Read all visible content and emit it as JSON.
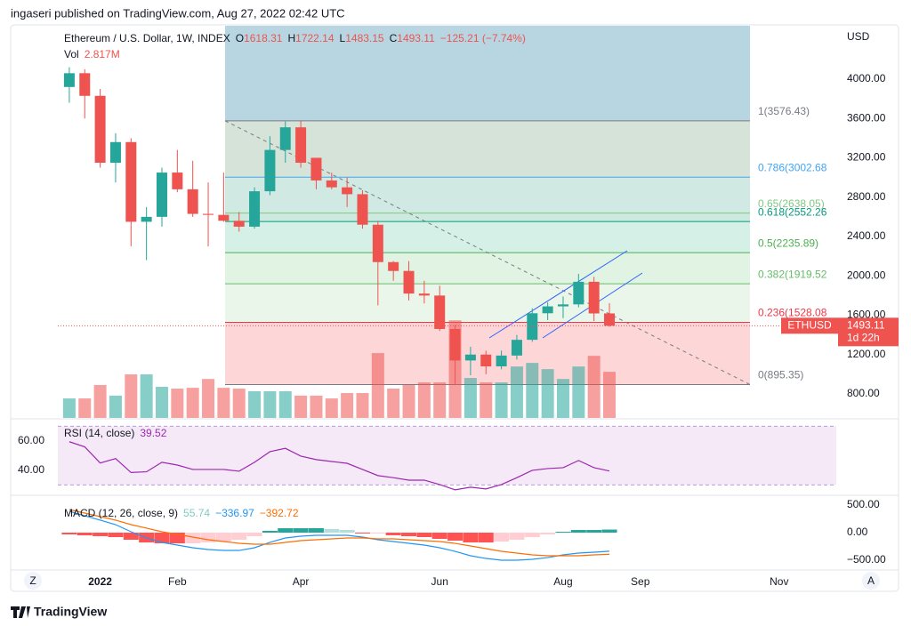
{
  "header": "ingaseri published on TradingView.com, Aug 27, 2022 02:42 UTC",
  "footer": "TradingView",
  "buttons": [
    "Z",
    "A"
  ],
  "chart_data": {
    "type": "candlestick",
    "title": "Ethereum / U.S. Dollar, 1W, INDEX",
    "ohlc_labels": [
      "O",
      "H",
      "L",
      "C"
    ],
    "change": "−125.21 (−7.74%)",
    "y_unit": "USD",
    "symbol": "ETHUSD",
    "countdown": "1d 22h",
    "up_color": "#26a69a",
    "down_color": "#ef5350",
    "open": [
      3920,
      4060,
      3830,
      3150,
      3360,
      2550,
      2600,
      3050,
      2880,
      2630,
      2620,
      2560,
      2500,
      2860,
      3280,
      3510,
      3200,
      2970,
      2900,
      2830,
      2520,
      2140,
      2050,
      1820,
      1800,
      1460,
      1140,
      1200,
      1080,
      1190,
      1350,
      1620,
      1690,
      1710,
      1940,
      1618.31
    ],
    "high": [
      4120,
      4100,
      3900,
      3450,
      3400,
      2700,
      3100,
      3280,
      3170,
      2950,
      3050,
      2650,
      2900,
      3420,
      3570,
      3580,
      3200,
      3050,
      3000,
      2870,
      2560,
      2150,
      2150,
      1950,
      1900,
      1500,
      1280,
      1240,
      1240,
      1400,
      1670,
      1730,
      1790,
      2020,
      1990,
      1722.14
    ],
    "low": [
      3760,
      3600,
      3100,
      2950,
      2300,
      2160,
      2500,
      2850,
      2600,
      2300,
      2550,
      2450,
      2480,
      2820,
      3150,
      3100,
      2880,
      2880,
      2700,
      2480,
      1700,
      1950,
      1750,
      1720,
      1440,
      890,
      990,
      1000,
      1050,
      1150,
      1330,
      1550,
      1570,
      1680,
      1540,
      1483.15
    ],
    "close": [
      4060,
      3830,
      3150,
      3360,
      2550,
      2600,
      3050,
      2880,
      2630,
      2620,
      2560,
      2500,
      2860,
      3280,
      3510,
      3150,
      2970,
      2900,
      2830,
      2520,
      2140,
      2050,
      1820,
      1800,
      1460,
      1140,
      1200,
      1080,
      1190,
      1350,
      1620,
      1690,
      1710,
      1940,
      1618,
      1493.11
    ],
    "xlim": [
      -3.8,
      49.7
    ],
    "xticks": [
      {
        "value": 2,
        "label": "2022"
      },
      {
        "value": 7,
        "label": "Feb"
      },
      {
        "value": 15,
        "label": "Apr"
      },
      {
        "value": 24,
        "label": "Jun"
      },
      {
        "value": 32,
        "label": "Aug"
      },
      {
        "value": 37,
        "label": "Sep"
      },
      {
        "value": 46,
        "label": "Nov"
      }
    ],
    "ylim": [
      556,
      4551
    ],
    "yticks": [
      {
        "value": 800,
        "label": "800.00"
      },
      {
        "value": 1200,
        "label": "1200.00"
      },
      {
        "value": 1600,
        "label": "1600.00"
      },
      {
        "value": 2000,
        "label": "2000.00"
      },
      {
        "value": 2400,
        "label": "2400.00"
      },
      {
        "value": 2800,
        "label": "2800.00"
      },
      {
        "value": 3200,
        "label": "3200.00"
      },
      {
        "value": 3600,
        "label": "3600.00"
      },
      {
        "value": 4000,
        "label": "4000.00"
      }
    ],
    "price_tag": "1493.11",
    "fib": {
      "values": [
        3576.43,
        3002.68,
        2638.05,
        2552.26,
        2235.89,
        1919.52,
        1528.08,
        895.35
      ],
      "labels": [
        "1(3576.43)",
        "0.786(3002.68",
        "0.65(2638.05)",
        "0.618(2552.26",
        "0.5(2235.89)",
        "0.382(1919.52",
        "0.236(1528.08",
        "0(895.35)"
      ],
      "colors": [
        "#787b86",
        "#42a5f5",
        "#81c784",
        "#089981",
        "#4caf50",
        "#66bb6a",
        "#f23645",
        "#787b86"
      ],
      "zone_colors": [
        "#b7d6e2",
        "#d3e2d6",
        "#cde9e1",
        "#c9e9dc",
        "#d2efe6",
        "#dff3e3",
        "#eaf6ea",
        "#fdd5d6"
      ]
    },
    "volume": {
      "label": "Vol",
      "value_label": "2.817M",
      "ylim": [
        0,
        24
      ],
      "values": [
        1.19,
        1.19,
        2.01,
        1.36,
        2.66,
        2.66,
        1.9,
        1.79,
        1.84,
        2.38,
        1.84,
        1.79,
        1.63,
        1.63,
        1.63,
        1.36,
        1.36,
        1.19,
        1.52,
        1.52,
        3.96,
        1.79,
        2.01,
        2.17,
        2.17,
        5.96,
        2.44,
        2.17,
        2.17,
        3.14,
        3.36,
        2.98,
        2.38,
        3.14,
        3.79,
        2.817
      ]
    },
    "rsi": {
      "label": "RSI (14, close)",
      "color": "#9c27b0",
      "band": [
        30,
        70
      ],
      "ylim": [
        24.2,
        74.5
      ],
      "yticks": [
        {
          "value": 60,
          "label": "60.00"
        },
        {
          "value": 40,
          "label": "40.00"
        }
      ],
      "values": [
        59.5,
        56,
        45,
        48,
        38.5,
        39,
        45.5,
        43.6,
        40.6,
        40.6,
        40.6,
        39.4,
        45.5,
        52.7,
        55,
        49.7,
        47.3,
        46,
        44.8,
        40.6,
        36.4,
        35,
        33.3,
        33.3,
        30.3,
        26.7,
        28.5,
        27.3,
        30.3,
        35,
        40,
        41.2,
        41.8,
        46.7,
        41.8,
        39.52
      ]
    },
    "macd": {
      "label": "MACD (12, 26, close, 9)",
      "legend_labels": [
        "55.74",
        "−336.97",
        "−392.72"
      ],
      "colors": [
        "#26a69a",
        "#2196f3",
        "#ff6d00"
      ],
      "ylim": [
        -661,
        661
      ],
      "yticks": [
        {
          "value": 500,
          "label": "500.00"
        },
        {
          "value": 0,
          "label": "0.00"
        },
        {
          "value": -500,
          "label": "−500.00"
        }
      ],
      "histogram": [
        -32,
        -49,
        -64,
        -81,
        -129,
        -178,
        -193,
        -194,
        -193,
        -177,
        -162,
        -129,
        -64,
        33,
        80,
        80,
        81,
        65,
        49,
        -16,
        -16,
        -48,
        -65,
        -81,
        -113,
        -145,
        -177,
        -178,
        -161,
        -129,
        -81,
        -33,
        16,
        48,
        48,
        55.74
      ],
      "macd": [
        387,
        306,
        226,
        145,
        16,
        -97,
        -177,
        -226,
        -274,
        -306,
        -323,
        -323,
        -274,
        -177,
        -97,
        -65,
        -48,
        -48,
        -48,
        -81,
        -129,
        -161,
        -194,
        -226,
        -274,
        -339,
        -419,
        -468,
        -500,
        -500,
        -484,
        -452,
        -403,
        -371,
        -355,
        -336.97
      ],
      "signal": [
        419,
        355,
        290,
        226,
        145,
        81,
        16,
        -32,
        -81,
        -129,
        -161,
        -194,
        -210,
        -210,
        -177,
        -145,
        -129,
        -113,
        -97,
        -97,
        -113,
        -113,
        -129,
        -145,
        -161,
        -194,
        -242,
        -290,
        -339,
        -371,
        -403,
        -419,
        -419,
        -419,
        -403,
        -392.72
      ]
    }
  }
}
